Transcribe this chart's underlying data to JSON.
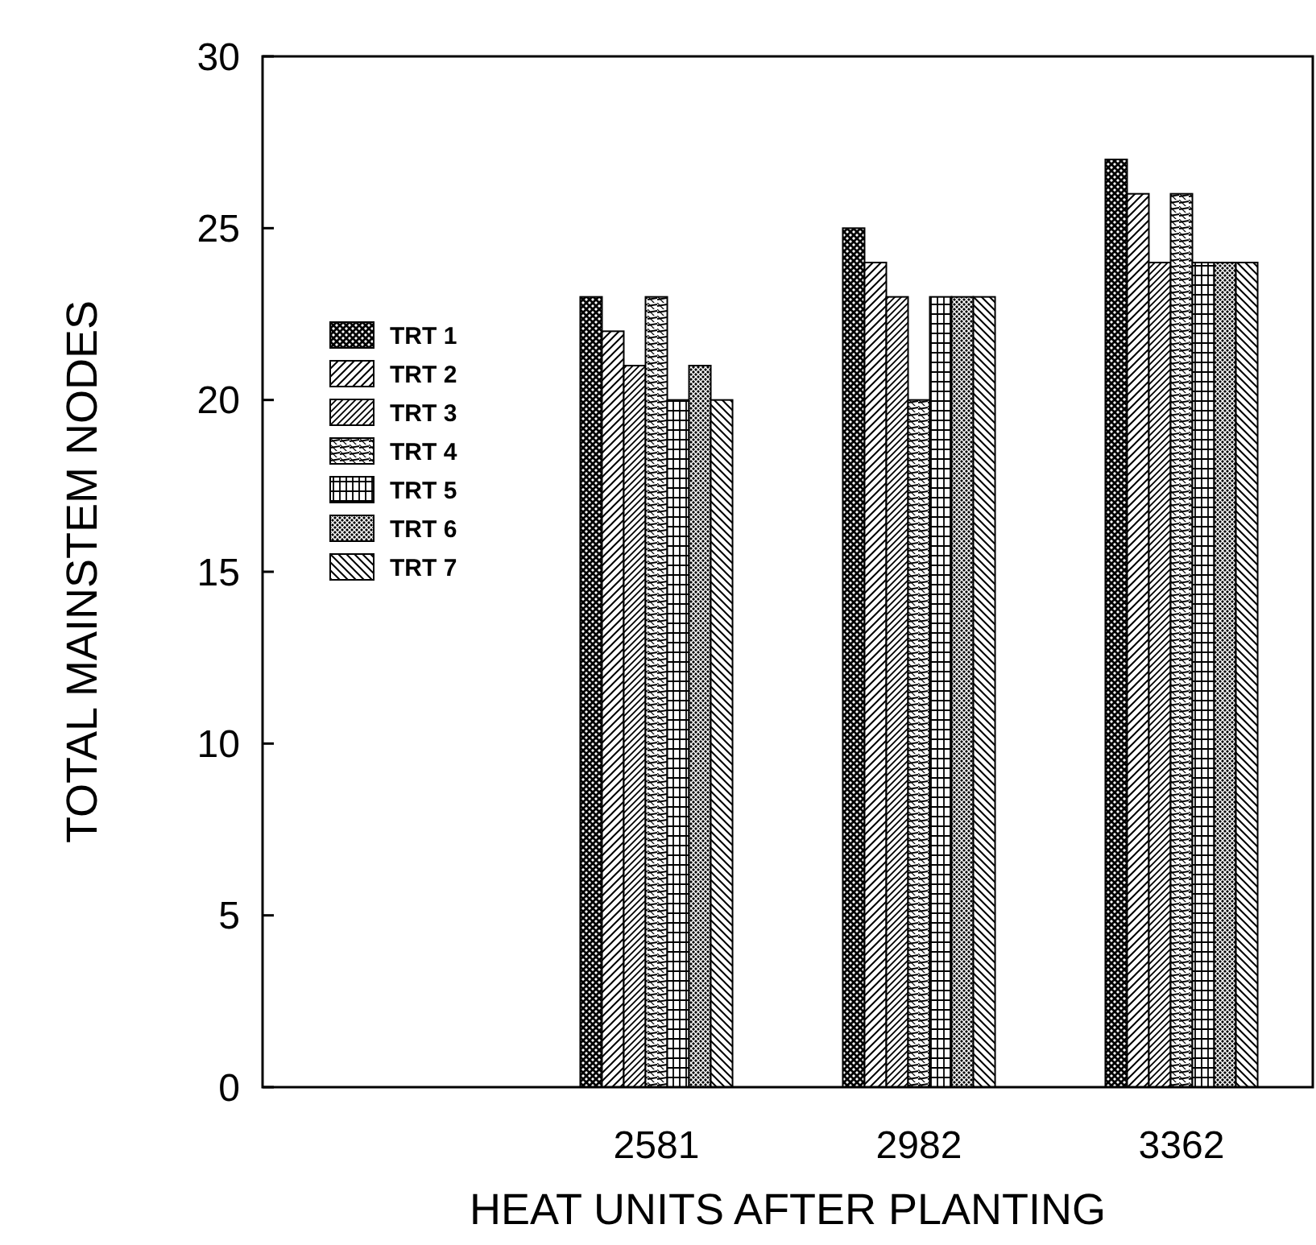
{
  "chart_data": {
    "type": "bar",
    "xlabel": "HEAT UNITS AFTER PLANTING",
    "ylabel": "TOTAL MAINSTEM NODES",
    "categories": [
      null,
      "2581",
      "2982",
      "3362"
    ],
    "series": [
      {
        "name": "TRT 1",
        "color": "#000000",
        "values": [
          null,
          23,
          25,
          27
        ]
      },
      {
        "name": "TRT 2",
        "color": "#000000",
        "values": [
          null,
          22,
          24,
          26
        ]
      },
      {
        "name": "TRT 3",
        "color": "#000000",
        "values": [
          null,
          21,
          23,
          24
        ]
      },
      {
        "name": "TRT 4",
        "color": "#000000",
        "values": [
          null,
          23,
          20,
          26
        ]
      },
      {
        "name": "TRT 5",
        "color": "#000000",
        "values": [
          null,
          20,
          23,
          24
        ]
      },
      {
        "name": "TRT 6",
        "color": "#000000",
        "values": [
          null,
          21,
          23,
          24
        ]
      },
      {
        "name": "TRT 7",
        "color": "#000000",
        "values": [
          null,
          20,
          23,
          24
        ]
      }
    ],
    "ylim": [
      0,
      30
    ],
    "yticks": [
      0,
      5,
      10,
      15,
      20,
      25,
      30
    ],
    "legend": "left"
  }
}
